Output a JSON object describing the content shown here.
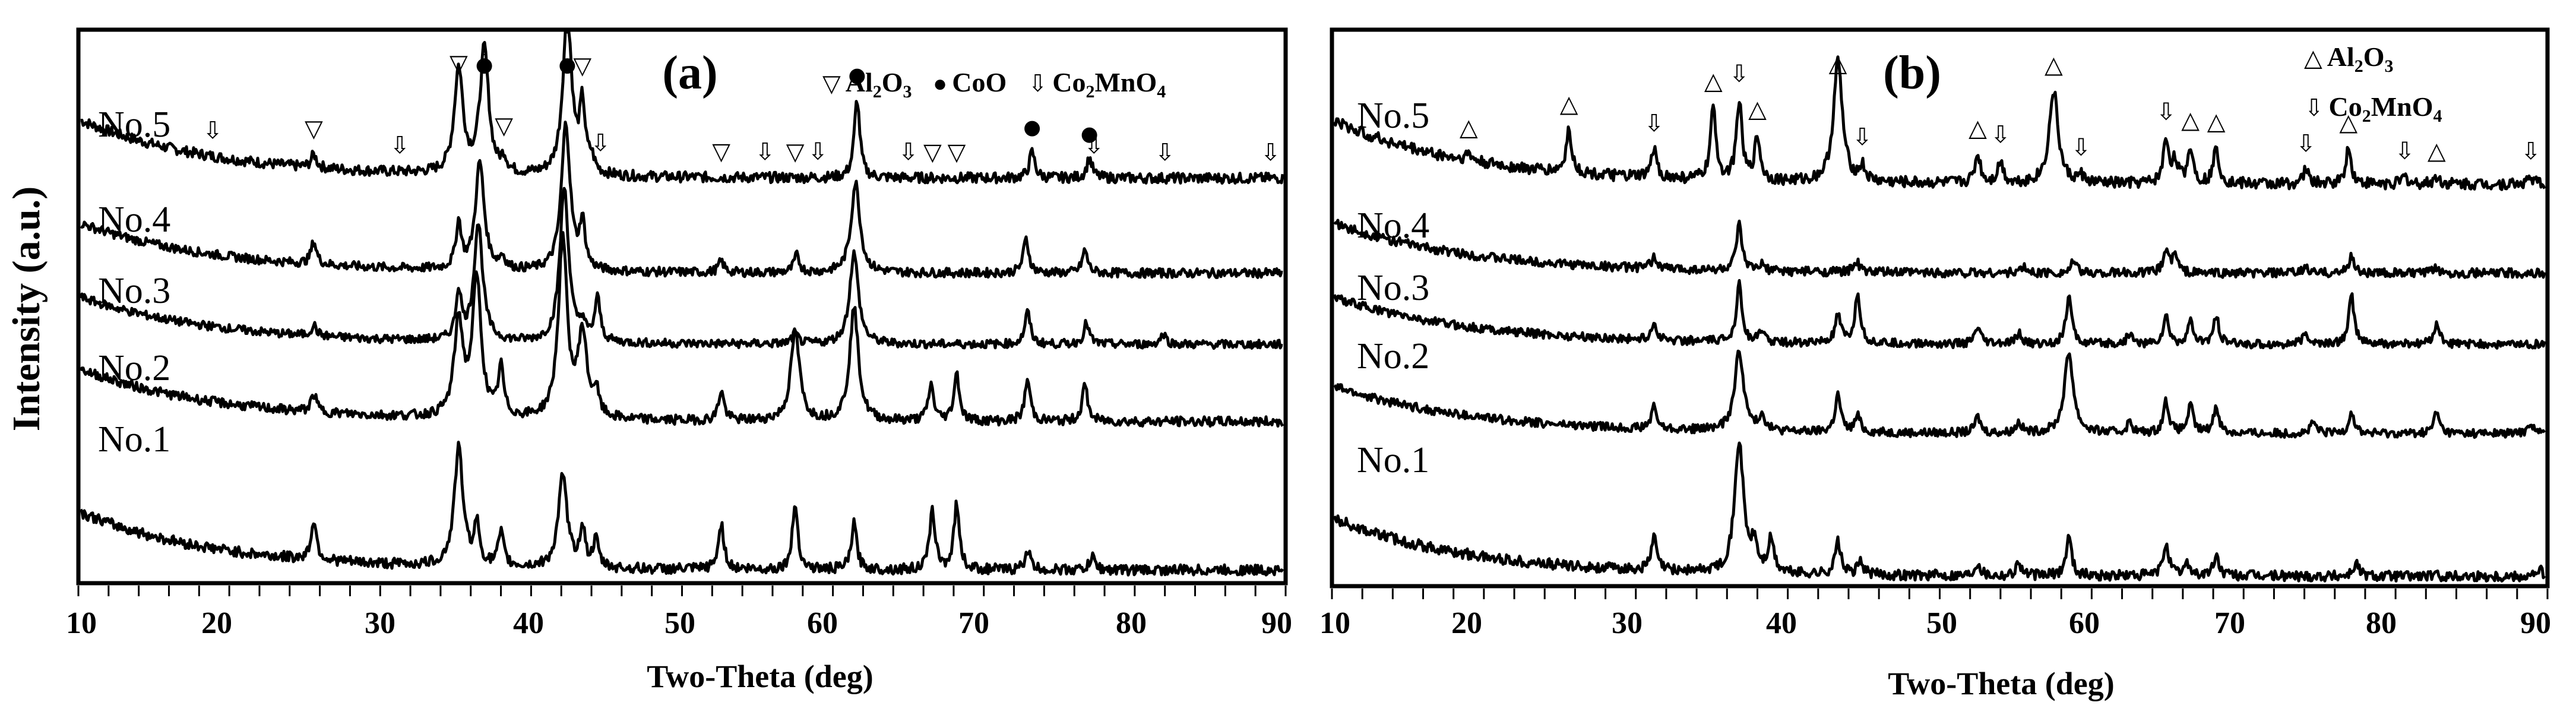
{
  "figure": {
    "ylabel": "Intensity (a.u.)",
    "panels": [
      {
        "tag": "(a)",
        "xlabel": "Two-Theta (deg)",
        "xticks": [
          "10",
          "20",
          "30",
          "40",
          "50",
          "60",
          "70",
          "80",
          "90"
        ],
        "legend": [
          {
            "symbol": "down-triangle",
            "glyph": "▽",
            "label_main": "Al",
            "sub1": "2",
            "mid": "O",
            "sub2": "3"
          },
          {
            "symbol": "filled-circle",
            "glyph": "●",
            "label_main": "CoO",
            "sub1": "",
            "mid": "",
            "sub2": ""
          },
          {
            "symbol": "down-arrow",
            "glyph": "⇩",
            "label_main": "Co",
            "sub1": "2",
            "mid": "MnO",
            "sub2": "4"
          }
        ],
        "samples": [
          "No.5",
          "No.4",
          "No.3",
          "No.2",
          "No.1"
        ]
      },
      {
        "tag": "(b)",
        "xlabel": "Two-Theta (deg)",
        "xticks": [
          "10",
          "20",
          "30",
          "40",
          "50",
          "60",
          "70",
          "80",
          "90"
        ],
        "legend": [
          {
            "symbol": "up-triangle",
            "glyph": "△",
            "label_main": "Al",
            "sub1": "2",
            "mid": "O",
            "sub2": "3"
          },
          {
            "symbol": "down-arrow",
            "glyph": "⇩",
            "label_main": "Co",
            "sub1": "2",
            "mid": "MnO",
            "sub2": "4"
          }
        ],
        "samples": [
          "No.5",
          "No.4",
          "No.3",
          "No.2",
          "No.1"
        ]
      }
    ]
  },
  "chart_data": [
    {
      "type": "line",
      "title": "(a)",
      "xlabel": "Two-Theta (deg)",
      "ylabel": "Intensity (a.u.)",
      "xlim": [
        10,
        90
      ],
      "xticks": [
        10,
        20,
        30,
        40,
        50,
        60,
        70,
        80,
        90
      ],
      "grid": false,
      "legend": [
        "Al2O3 (▽)",
        "CoO (●)",
        "Co2MnO4 (⇩)"
      ],
      "legend_position": "top-right",
      "series": [
        {
          "name": "No.5",
          "offset": 4,
          "peaks": [
            [
              25.6,
              0.2
            ],
            [
              35.2,
              1.6
            ],
            [
              36.9,
              1.9
            ],
            [
              38.2,
              0.2
            ],
            [
              42.4,
              2.5
            ],
            [
              43.4,
              1.0
            ],
            [
              44.0,
              0.2
            ],
            [
              61.6,
              1.2
            ],
            [
              73.2,
              0.4
            ],
            [
              77.0,
              0.3
            ]
          ]
        },
        {
          "name": "No.4",
          "offset": 3,
          "peaks": [
            [
              25.6,
              0.4
            ],
            [
              35.2,
              0.8
            ],
            [
              36.6,
              1.9
            ],
            [
              38.1,
              0.2
            ],
            [
              42.3,
              2.6
            ],
            [
              43.4,
              0.8
            ],
            [
              52.6,
              0.2
            ],
            [
              57.6,
              0.3
            ],
            [
              61.5,
              1.6
            ],
            [
              72.8,
              0.6
            ],
            [
              76.7,
              0.4
            ]
          ]
        },
        {
          "name": "No.3",
          "offset": 2,
          "peaks": [
            [
              25.6,
              0.2
            ],
            [
              35.2,
              0.9
            ],
            [
              36.5,
              2.2
            ],
            [
              42.2,
              2.9
            ],
            [
              43.4,
              0.3
            ],
            [
              44.4,
              0.8
            ],
            [
              57.5,
              0.2
            ],
            [
              61.4,
              1.7
            ],
            [
              72.9,
              0.6
            ],
            [
              76.8,
              0.4
            ],
            [
              81.9,
              0.2
            ]
          ]
        },
        {
          "name": "No.2",
          "offset": 1,
          "peaks": [
            [
              25.6,
              0.3
            ],
            [
              35.2,
              1.6
            ],
            [
              36.4,
              2.3
            ],
            [
              38.0,
              0.8
            ],
            [
              42.1,
              3.0
            ],
            [
              43.4,
              1.4
            ],
            [
              44.3,
              0.4
            ],
            [
              52.6,
              0.5
            ],
            [
              57.5,
              1.5
            ],
            [
              61.4,
              1.9
            ],
            [
              66.5,
              0.6
            ],
            [
              68.2,
              0.8
            ],
            [
              72.9,
              0.7
            ],
            [
              76.7,
              0.6
            ]
          ]
        },
        {
          "name": "No.1",
          "offset": 0,
          "peaks": [
            [
              25.6,
              0.6
            ],
            [
              35.2,
              1.8
            ],
            [
              36.4,
              0.6
            ],
            [
              38.0,
              0.5
            ],
            [
              42.1,
              1.4
            ],
            [
              43.4,
              0.6
            ],
            [
              44.3,
              0.4
            ],
            [
              52.6,
              0.7
            ],
            [
              57.5,
              1.0
            ],
            [
              61.4,
              0.7
            ],
            [
              66.6,
              0.9
            ],
            [
              68.2,
              1.0
            ],
            [
              72.9,
              0.3
            ],
            [
              77.2,
              0.2
            ]
          ]
        }
      ],
      "annotations": {
        "Al2O3": [
          25.6,
          35.2,
          38.2,
          43.4,
          52.6,
          57.5,
          66.6,
          68.2
        ],
        "CoO": [
          36.9,
          42.4,
          61.6,
          73.2,
          77.0
        ],
        "Co2MnO4": [
          18.9,
          31.3,
          36.9,
          44.6,
          55.5,
          59.0,
          65.0,
          77.3,
          82.0,
          89.0
        ]
      }
    },
    {
      "type": "line",
      "title": "(b)",
      "xlabel": "Two-Theta (deg)",
      "ylabel": "Intensity (a.u.)",
      "xlim": [
        10,
        90
      ],
      "xticks": [
        10,
        20,
        30,
        40,
        50,
        60,
        70,
        80,
        90
      ],
      "grid": false,
      "legend": [
        "Al2O3 (△)",
        "Co2MnO4 (⇩)"
      ],
      "legend_position": "top-right",
      "series": [
        {
          "name": "No.5",
          "offset": 4,
          "peaks": [
            [
              19.0,
              0.1
            ],
            [
              25.6,
              0.6
            ],
            [
              31.2,
              0.4
            ],
            [
              35.1,
              1.0
            ],
            [
              36.8,
              1.1
            ],
            [
              38.0,
              0.6
            ],
            [
              43.3,
              1.7
            ],
            [
              44.9,
              0.2
            ],
            [
              52.5,
              0.4
            ],
            [
              54.0,
              0.3
            ],
            [
              57.5,
              1.3
            ],
            [
              59.3,
              0.1
            ],
            [
              64.9,
              0.6
            ],
            [
              65.5,
              0.3
            ],
            [
              66.5,
              0.5
            ],
            [
              68.2,
              0.5
            ],
            [
              74.1,
              0.2
            ],
            [
              76.9,
              0.5
            ],
            [
              80.6,
              0.1
            ],
            [
              82.7,
              0.1
            ],
            [
              88.9,
              0.1
            ]
          ]
        },
        {
          "name": "No.4",
          "offset": 3,
          "peaks": [
            [
              31.2,
              0.2
            ],
            [
              36.8,
              0.8
            ],
            [
              38.3,
              0.1
            ],
            [
              44.5,
              0.2
            ],
            [
              55.5,
              0.1
            ],
            [
              58.8,
              0.2
            ],
            [
              64.9,
              0.4
            ],
            [
              65.5,
              0.3
            ],
            [
              74.1,
              0.1
            ],
            [
              77.1,
              0.3
            ],
            [
              82.7,
              0.1
            ]
          ]
        },
        {
          "name": "No.3",
          "offset": 2,
          "peaks": [
            [
              31.2,
              0.3
            ],
            [
              36.8,
              1.1
            ],
            [
              38.3,
              0.2
            ],
            [
              43.3,
              0.5
            ],
            [
              44.6,
              0.9
            ],
            [
              52.5,
              0.3
            ],
            [
              55.2,
              0.2
            ],
            [
              58.5,
              0.9
            ],
            [
              62.5,
              0.2
            ],
            [
              64.9,
              0.5
            ],
            [
              66.5,
              0.4
            ],
            [
              68.2,
              0.5
            ],
            [
              74.1,
              0.2
            ],
            [
              77.1,
              0.9
            ],
            [
              82.7,
              0.4
            ]
          ]
        },
        {
          "name": "No.2",
          "offset": 1,
          "peaks": [
            [
              31.2,
              0.4
            ],
            [
              36.8,
              1.5
            ],
            [
              38.3,
              0.3
            ],
            [
              43.3,
              0.7
            ],
            [
              44.6,
              0.3
            ],
            [
              52.5,
              0.3
            ],
            [
              55.2,
              0.2
            ],
            [
              58.5,
              1.5
            ],
            [
              62.5,
              0.2
            ],
            [
              64.9,
              0.6
            ],
            [
              66.5,
              0.5
            ],
            [
              68.2,
              0.5
            ],
            [
              74.6,
              0.2
            ],
            [
              77.1,
              0.4
            ],
            [
              82.7,
              0.4
            ],
            [
              88.9,
              0.2
            ]
          ]
        },
        {
          "name": "No.1",
          "offset": 0,
          "peaks": [
            [
              31.2,
              0.5
            ],
            [
              36.8,
              2.0
            ],
            [
              37.8,
              0.4
            ],
            [
              38.9,
              0.5
            ],
            [
              43.3,
              0.5
            ],
            [
              44.8,
              0.2
            ],
            [
              52.5,
              0.2
            ],
            [
              55.2,
              0.2
            ],
            [
              58.5,
              0.6
            ],
            [
              64.9,
              0.5
            ],
            [
              66.3,
              0.2
            ],
            [
              68.2,
              0.3
            ],
            [
              77.4,
              0.2
            ],
            [
              89.5,
              0.1
            ]
          ]
        }
      ],
      "annotations": {
        "Al2O3": [
          19.0,
          25.6,
          35.1,
          38.0,
          43.3,
          52.5,
          57.5,
          66.5,
          68.2,
          76.9,
          82.7
        ],
        "Co2MnO4": [
          31.2,
          36.8,
          44.9,
          54.0,
          59.3,
          64.9,
          74.1,
          80.6,
          88.9
        ]
      }
    }
  ]
}
